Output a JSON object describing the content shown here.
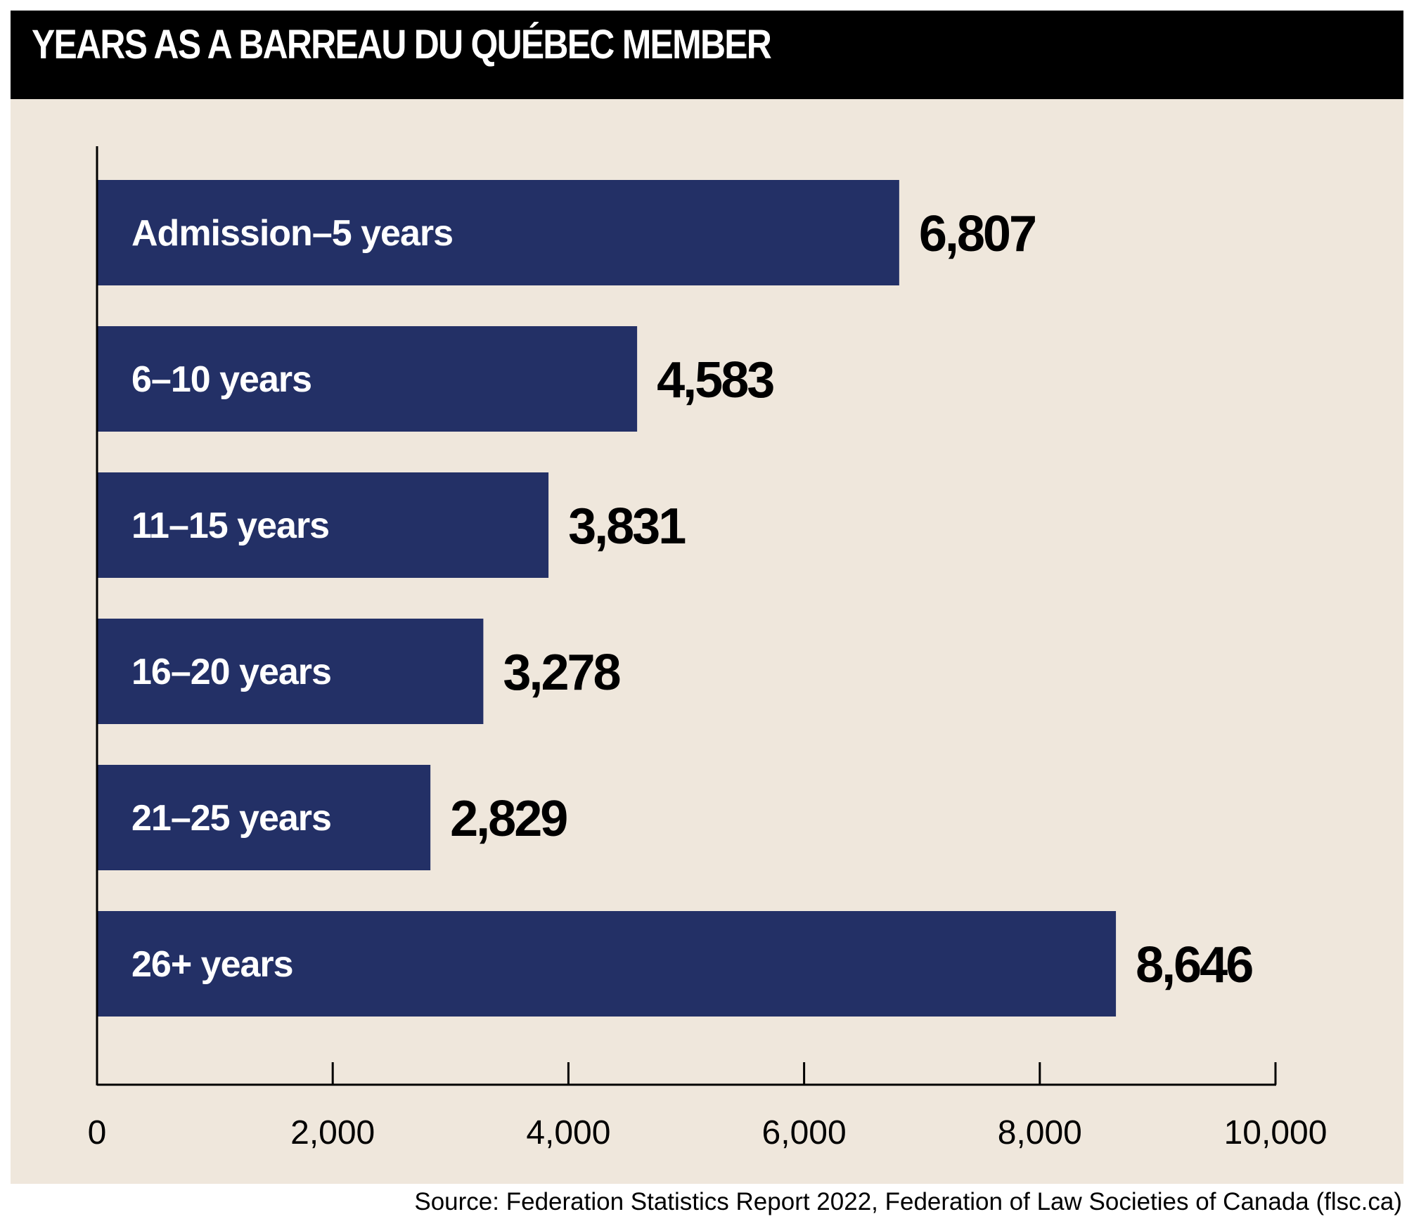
{
  "title": "YEARS AS A BARREAU DU QUÉBEC MEMBER",
  "source": "Source: Federation Statistics Report 2022, Federation of Law Societies of Canada (flsc.ca)",
  "colors": {
    "bar": "#233066",
    "background": "#efe7dc",
    "header": "#000000"
  },
  "chart_data": {
    "type": "bar",
    "orientation": "horizontal",
    "title": "YEARS AS A BARREAU DU QUÉBEC MEMBER",
    "categories": [
      "Admission–5 years",
      "6–10 years",
      "11–15 years",
      "16–20 years",
      "21–25 years",
      "26+ years"
    ],
    "values": [
      6807,
      4583,
      3831,
      3278,
      2829,
      8646
    ],
    "value_labels": [
      "6,807",
      "4,583",
      "3,831",
      "3,278",
      "2,829",
      "8,646"
    ],
    "xlim": [
      0,
      10000
    ],
    "xticks": [
      0,
      2000,
      4000,
      6000,
      8000,
      10000
    ],
    "xtick_labels": [
      "0",
      "2,000",
      "4,000",
      "6,000",
      "8,000",
      "10,000"
    ],
    "grid": false,
    "xlabel": "",
    "ylabel": ""
  }
}
